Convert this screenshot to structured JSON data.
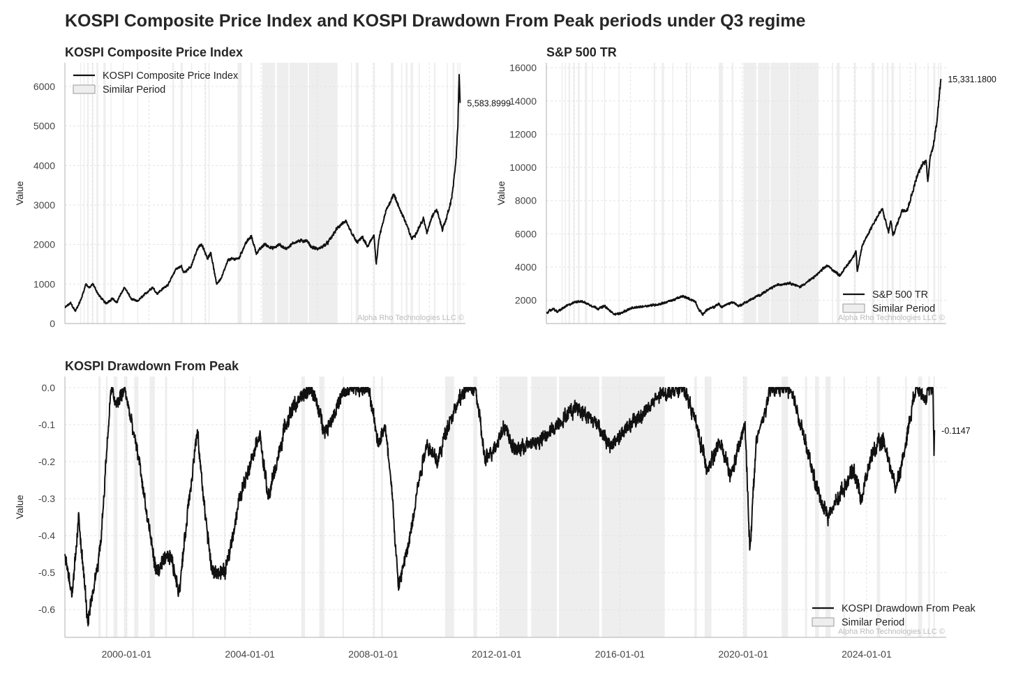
{
  "suptitle": "KOSPI Composite Price Index and KOSPI Drawdown From Peak periods under Q3 regime",
  "watermark": "Alpha Rho Technologies LLC ©",
  "colors": {
    "line": "#111111",
    "shade": "#eeeeee",
    "grid": "#e3e3e3",
    "axis": "#bdbdbd"
  },
  "x_range": [
    "1998-01-01",
    "2026-08-01"
  ],
  "x_ticks": [
    "2000-01-01",
    "2004-01-01",
    "2008-01-01",
    "2012-01-01",
    "2016-01-01",
    "2020-01-01",
    "2024-01-01"
  ],
  "similar_periods": [
    [
      "1999-02-01",
      "1999-03-01"
    ],
    [
      "1999-05-01",
      "1999-05-20"
    ],
    [
      "1999-08-01",
      "1999-09-15"
    ],
    [
      "1999-12-01",
      "2000-01-10"
    ],
    [
      "2000-04-01",
      "2000-05-20"
    ],
    [
      "2000-10-01",
      "2000-12-01"
    ],
    [
      "2001-04-01",
      "2001-04-25"
    ],
    [
      "2002-02-15",
      "2002-03-10"
    ],
    [
      "2003-03-01",
      "2003-03-20"
    ],
    [
      "2005-09-01",
      "2005-10-15"
    ],
    [
      "2006-04-01",
      "2006-06-01"
    ],
    [
      "2007-01-01",
      "2007-01-20"
    ],
    [
      "2008-01-01",
      "2008-01-20"
    ],
    [
      "2008-04-01",
      "2008-04-25"
    ],
    [
      "2010-05-01",
      "2010-08-15"
    ],
    [
      "2011-04-01",
      "2011-05-15"
    ],
    [
      "2012-02-01",
      "2013-01-01"
    ],
    [
      "2013-02-15",
      "2013-12-15"
    ],
    [
      "2014-01-10",
      "2015-05-01"
    ],
    [
      "2015-06-01",
      "2017-06-15"
    ],
    [
      "2018-06-01",
      "2018-06-30"
    ],
    [
      "2018-10-01",
      "2018-12-20"
    ],
    [
      "2020-01-01",
      "2020-02-15"
    ],
    [
      "2021-04-01",
      "2021-06-15"
    ],
    [
      "2022-01-01",
      "2022-01-25"
    ],
    [
      "2022-05-01",
      "2022-06-15"
    ],
    [
      "2022-09-01",
      "2022-11-01"
    ],
    [
      "2023-04-01",
      "2023-04-20"
    ],
    [
      "2024-05-01",
      "2024-06-10"
    ],
    [
      "2025-04-01",
      "2025-04-20"
    ],
    [
      "2025-09-01",
      "2025-10-20"
    ],
    [
      "2026-01-01",
      "2026-01-20"
    ],
    [
      "2026-03-01",
      "2026-03-20"
    ]
  ],
  "panels": {
    "kospi": {
      "title": "KOSPI Composite Price Index",
      "ylabel": "Value",
      "yticks": [
        "0",
        "1000",
        "2000",
        "3000",
        "4000",
        "5000",
        "6000"
      ],
      "legend": [
        "KOSPI Composite Price Index",
        "Similar Period"
      ],
      "end_label": "5,583.8999"
    },
    "sp500": {
      "title": "S&P 500 TR",
      "ylabel": "Value",
      "yticks": [
        "2000",
        "4000",
        "6000",
        "8000",
        "10000",
        "12000",
        "14000",
        "16000"
      ],
      "legend": [
        "S&P 500 TR",
        "Similar Period"
      ],
      "end_label": "15,331.1800"
    },
    "drawdown": {
      "title": "KOSPI Drawdown From Peak",
      "ylabel": "Value",
      "yticks": [
        "0.0",
        "-0.1",
        "-0.2",
        "-0.3",
        "-0.4",
        "-0.5",
        "-0.6"
      ],
      "legend": [
        "KOSPI Drawdown From Peak",
        "Similar Period"
      ],
      "end_label": "-0.1147"
    }
  },
  "chart_data": [
    {
      "type": "line",
      "title": "KOSPI Composite Price Index",
      "xlabel": "",
      "ylabel": "Value",
      "ylim": [
        0,
        6600
      ],
      "series": [
        {
          "name": "KOSPI Composite Price Index",
          "x": [
            "1998-01-01",
            "1998-06-01",
            "1998-10-01",
            "1999-03-01",
            "1999-07-01",
            "1999-10-01",
            "2000-01-01",
            "2000-06-01",
            "2000-12-01",
            "2001-06-01",
            "2001-09-01",
            "2002-04-01",
            "2002-10-01",
            "2003-03-01",
            "2003-12-01",
            "2004-04-01",
            "2004-08-01",
            "2005-06-01",
            "2005-12-01",
            "2006-05-01",
            "2006-06-15",
            "2007-01-01",
            "2007-07-01",
            "2007-10-01",
            "2008-03-01",
            "2008-06-01",
            "2008-10-25",
            "2009-03-01",
            "2009-09-01",
            "2010-06-01",
            "2010-12-01",
            "2011-04-25",
            "2011-09-01",
            "2012-04-01",
            "2012-11-01",
            "2013-05-01",
            "2013-10-01",
            "2014-07-01",
            "2015-04-01",
            "2015-08-01",
            "2016-02-01",
            "2016-10-01",
            "2017-06-01",
            "2017-11-01",
            "2018-01-25",
            "2018-10-30",
            "2019-04-01",
            "2019-08-10",
            "2020-01-20",
            "2020-03-19",
            "2020-06-01",
            "2020-12-01",
            "2021-06-25",
            "2021-10-01",
            "2022-03-01",
            "2022-09-30",
            "2023-01-01",
            "2023-08-01",
            "2023-11-01",
            "2024-03-01",
            "2024-07-15",
            "2024-12-10",
            "2025-03-01",
            "2025-06-01",
            "2025-08-01",
            "2025-10-01",
            "2025-12-01",
            "2026-01-15",
            "2026-02-20",
            "2026-03-15"
          ],
          "values": [
            400,
            520,
            310,
            620,
            1000,
            900,
            1000,
            720,
            510,
            640,
            520,
            920,
            620,
            560,
            810,
            920,
            760,
            1010,
            1380,
            1450,
            1290,
            1430,
            1930,
            2010,
            1650,
            1800,
            1000,
            1150,
            1620,
            1650,
            2050,
            2200,
            1780,
            2010,
            1900,
            2000,
            1890,
            2080,
            2100,
            1940,
            1880,
            2040,
            2400,
            2550,
            2560,
            2050,
            2180,
            1930,
            2260,
            1480,
            2160,
            2850,
            3300,
            3000,
            2700,
            2150,
            2250,
            2650,
            2300,
            2700,
            2880,
            2380,
            2600,
            2900,
            3150,
            3600,
            4150,
            5000,
            6300,
            5583.8999
          ]
        }
      ]
    },
    {
      "type": "line",
      "title": "S&P 500 TR",
      "xlabel": "",
      "ylabel": "Value",
      "ylim": [
        600,
        16300
      ],
      "series": [
        {
          "name": "S&P 500 TR",
          "x": [
            "1998-01-01",
            "1998-07-15",
            "1998-10-08",
            "1999-06-01",
            "2000-03-24",
            "2000-09-01",
            "2001-03-01",
            "2001-09-21",
            "2002-03-01",
            "2002-10-09",
            "2003-03-11",
            "2004-01-01",
            "2005-01-01",
            "2006-01-01",
            "2007-01-01",
            "2007-10-09",
            "2008-05-01",
            "2008-09-01",
            "2008-11-20",
            "2009-03-09",
            "2009-06-01",
            "2010-01-01",
            "2010-04-23",
            "2010-07-02",
            "2011-04-29",
            "2011-10-03",
            "2012-06-01",
            "2013-06-01",
            "2014-06-01",
            "2015-06-01",
            "2016-02-11",
            "2017-01-01",
            "2018-01-26",
            "2018-12-24",
            "2019-12-01",
            "2020-02-19",
            "2020-03-23",
            "2020-08-01",
            "2021-06-01",
            "2022-01-03",
            "2022-06-16",
            "2022-08-16",
            "2022-10-12",
            "2023-06-01",
            "2023-10-27",
            "2024-07-16",
            "2024-12-01",
            "2025-02-19",
            "2025-04-08",
            "2025-06-01",
            "2025-09-01",
            "2025-12-01",
            "2026-03-15"
          ],
          "values": [
            1250,
            1500,
            1300,
            1650,
            1950,
            1900,
            1700,
            1500,
            1650,
            1200,
            1180,
            1500,
            1650,
            1750,
            2000,
            2250,
            2050,
            1900,
            1450,
            1150,
            1400,
            1600,
            1800,
            1600,
            1900,
            1650,
            1950,
            2400,
            2900,
            3050,
            2800,
            3300,
            4100,
            3500,
            4600,
            5000,
            3700,
            5300,
            6700,
            7500,
            6100,
            6800,
            5900,
            7400,
            7500,
            9600,
            10200,
            10400,
            9200,
            10500,
            11400,
            12800,
            15331.18
          ]
        }
      ]
    },
    {
      "type": "line",
      "title": "KOSPI Drawdown From Peak",
      "xlabel": "",
      "ylabel": "Value",
      "ylim": [
        -0.675,
        0.03
      ],
      "series": [
        {
          "name": "KOSPI Drawdown From Peak",
          "x": [
            "1998-01-01",
            "1998-04-01",
            "1998-06-15",
            "1998-10-01",
            "1998-12-01",
            "1999-03-01",
            "1999-06-01",
            "1999-07-05",
            "1999-09-01",
            "1999-12-10",
            "2000-03-01",
            "2000-06-01",
            "2000-09-01",
            "2000-12-20",
            "2001-06-01",
            "2001-09-17",
            "2002-01-01",
            "2002-04-18",
            "2002-07-01",
            "2002-10-10",
            "2003-03-17",
            "2003-09-01",
            "2004-04-23",
            "2004-08-05",
            "2005-03-01",
            "2005-06-01",
            "2005-12-31",
            "2006-06-13",
            "2007-01-01",
            "2007-05-01",
            "2007-10-31",
            "2008-03-01",
            "2008-05-16",
            "2008-08-01",
            "2008-10-24",
            "2009-03-01",
            "2009-06-01",
            "2009-09-22",
            "2010-02-05",
            "2010-06-01",
            "2010-12-31",
            "2011-04-27",
            "2011-08-19",
            "2012-01-01",
            "2012-04-01",
            "2012-07-25",
            "2013-06-25",
            "2014-07-30",
            "2015-04-24",
            "2015-08-24",
            "2016-02-12",
            "2016-10-01",
            "2017-05-01",
            "2017-11-01",
            "2018-01-29",
            "2018-06-01",
            "2018-10-30",
            "2019-04-01",
            "2019-08-06",
            "2020-01-22",
            "2020-03-19",
            "2020-06-01",
            "2020-12-01",
            "2021-06-25",
            "2021-10-01",
            "2022-03-01",
            "2022-06-01",
            "2022-09-30",
            "2023-01-01",
            "2023-08-01",
            "2023-10-31",
            "2024-03-01",
            "2024-07-15",
            "2024-12-09",
            "2025-03-01",
            "2025-06-01",
            "2025-08-01",
            "2025-10-01",
            "2025-12-01",
            "2026-01-15",
            "2026-02-26",
            "2026-03-10",
            "2026-03-15"
          ],
          "values": [
            -0.45,
            -0.56,
            -0.35,
            -0.64,
            -0.55,
            -0.42,
            -0.1,
            0.0,
            -0.05,
            0.0,
            -0.1,
            -0.2,
            -0.35,
            -0.5,
            -0.45,
            -0.55,
            -0.32,
            -0.12,
            -0.3,
            -0.5,
            -0.5,
            -0.3,
            -0.12,
            -0.3,
            -0.1,
            -0.05,
            0.0,
            -0.12,
            -0.02,
            0.0,
            0.0,
            -0.15,
            -0.1,
            -0.25,
            -0.54,
            -0.42,
            -0.28,
            -0.15,
            -0.2,
            -0.1,
            0.0,
            0.0,
            -0.2,
            -0.15,
            -0.1,
            -0.17,
            -0.14,
            -0.05,
            -0.1,
            -0.16,
            -0.12,
            -0.07,
            -0.02,
            0.0,
            0.0,
            -0.08,
            -0.22,
            -0.15,
            -0.24,
            -0.1,
            -0.44,
            -0.15,
            0.0,
            0.0,
            -0.06,
            -0.2,
            -0.28,
            -0.35,
            -0.31,
            -0.22,
            -0.3,
            -0.18,
            -0.14,
            -0.27,
            -0.2,
            -0.08,
            0.0,
            0.0,
            -0.04,
            0.0,
            0.0,
            -0.19,
            -0.1147
          ]
        }
      ]
    }
  ]
}
